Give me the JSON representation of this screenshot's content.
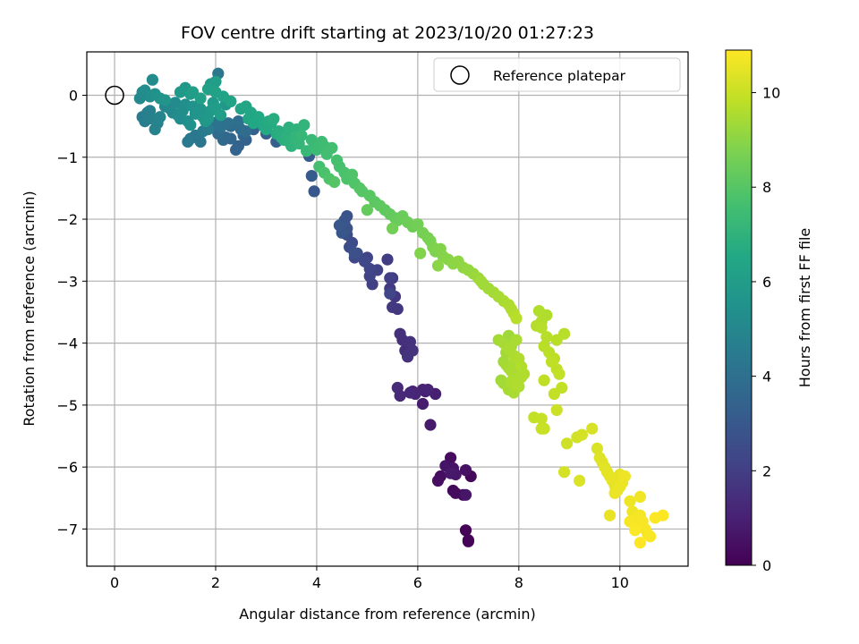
{
  "chart_data": {
    "type": "scatter",
    "title": "FOV centre drift starting at 2023/10/20 01:27:23",
    "xlabel": "Angular distance from reference (arcmin)",
    "ylabel": "Rotation from reference (arcmin)",
    "xlim": [
      -0.55,
      11.35
    ],
    "ylim": [
      -7.6,
      0.7
    ],
    "xticks": [
      0,
      2,
      4,
      6,
      8,
      10
    ],
    "yticks": [
      0,
      -1,
      -2,
      -3,
      -4,
      -5,
      -6,
      -7
    ],
    "grid": true,
    "legend": {
      "position": "top-right",
      "entries": [
        "Reference platepar"
      ]
    },
    "reference_point": {
      "x": 0,
      "y": 0,
      "label": "Reference platepar"
    },
    "colorbar": {
      "label": "Hours from first FF file",
      "colormap": "viridis",
      "range": [
        0,
        10.9
      ],
      "ticks": [
        0,
        2,
        4,
        6,
        8,
        10
      ]
    },
    "series": [
      {
        "x": [
          7.0,
          6.95,
          7.0,
          6.9,
          7.05,
          6.7,
          6.75,
          6.65,
          6.45,
          6.4,
          6.95,
          6.7,
          6.55,
          6.95,
          6.75,
          6.65
        ],
        "y": [
          -7.2,
          -7.02,
          -7.18,
          -6.45,
          -6.15,
          -6.38,
          -6.42,
          -5.85,
          -6.15,
          -6.22,
          -6.05,
          -6.02,
          -5.98,
          -6.45,
          -6.12,
          -6.1
        ],
        "hours": [
          0.0,
          0.05,
          0.1,
          0.15,
          0.2,
          0.25,
          0.3,
          0.35,
          0.4,
          0.45,
          0.5,
          0.55,
          0.6,
          0.65,
          0.7,
          0.75
        ]
      },
      {
        "x": [
          6.25,
          6.1,
          6.15,
          6.35,
          5.9,
          6.1,
          6.2,
          5.95,
          5.85,
          5.65,
          5.6,
          5.8,
          5.75,
          5.7,
          5.65,
          5.85,
          5.9,
          5.8,
          5.6,
          5.55,
          5.5,
          5.45,
          5.5,
          5.4,
          5.45,
          5.1,
          5.2,
          5.05,
          5.0,
          5.45
        ],
        "y": [
          -5.32,
          -4.98,
          -4.78,
          -4.82,
          -4.78,
          -4.75,
          -4.75,
          -4.82,
          -4.8,
          -4.85,
          -4.72,
          -4.22,
          -4.12,
          -3.95,
          -3.85,
          -3.98,
          -4.12,
          -4.2,
          -3.45,
          -3.25,
          -3.42,
          -3.12,
          -2.95,
          -2.65,
          -2.95,
          -3.05,
          -2.82,
          -2.92,
          -2.62,
          -3.2
        ],
        "hours": [
          0.8,
          0.85,
          0.9,
          0.95,
          1.0,
          1.05,
          1.1,
          1.15,
          1.2,
          1.25,
          1.3,
          1.35,
          1.4,
          1.45,
          1.5,
          1.55,
          1.6,
          1.65,
          1.7,
          1.75,
          1.8,
          1.85,
          1.9,
          1.95,
          2.0,
          2.05,
          2.1,
          2.15,
          2.2,
          2.25
        ]
      },
      {
        "x": [
          5.05,
          4.95,
          4.75,
          4.7,
          4.8,
          4.65,
          4.6,
          4.75,
          4.55,
          4.6,
          4.6,
          4.55,
          4.5,
          4.45,
          3.95
        ],
        "y": [
          -2.8,
          -2.68,
          -2.62,
          -2.38,
          -2.55,
          -2.45,
          -2.25,
          -2.55,
          -2.05,
          -2.15,
          -1.95,
          -2.02,
          -2.22,
          -2.1,
          -1.55
        ],
        "hours": [
          2.3,
          2.35,
          2.4,
          2.45,
          2.5,
          2.55,
          2.6,
          2.65,
          2.7,
          2.75,
          2.8,
          2.85,
          2.9,
          2.95,
          3.0
        ]
      },
      {
        "x": [
          3.9,
          3.85,
          3.5,
          3.35,
          3.2,
          3.0,
          2.75,
          2.6,
          2.45,
          2.4,
          2.55,
          2.3,
          2.2,
          2.15,
          2.05,
          2.3,
          2.6,
          2.5,
          2.45,
          2.25,
          2.1,
          1.95,
          2.05,
          1.65,
          1.7,
          1.6,
          1.5,
          1.45,
          1.75,
          1.85
        ],
        "y": [
          -1.3,
          -0.98,
          -0.8,
          -0.7,
          -0.75,
          -0.62,
          -0.55,
          -0.72,
          -0.82,
          -0.88,
          -0.65,
          -0.7,
          -0.68,
          -0.72,
          -0.62,
          -0.5,
          -0.58,
          -0.55,
          -0.42,
          -0.45,
          -0.52,
          -0.48,
          -0.42,
          -0.68,
          -0.75,
          -0.65,
          -0.7,
          -0.75,
          -0.58,
          -0.55
        ],
        "hours": [
          3.05,
          3.1,
          3.15,
          3.2,
          3.25,
          3.3,
          3.35,
          3.4,
          3.45,
          3.5,
          3.55,
          3.6,
          3.65,
          3.7,
          3.75,
          3.8,
          3.85,
          3.9,
          3.95,
          4.0,
          4.05,
          4.1,
          4.15,
          4.2,
          4.25,
          4.3,
          4.35,
          4.4,
          4.45,
          4.5
        ]
      },
      {
        "x": [
          0.55,
          0.6,
          0.65,
          0.7,
          0.75,
          0.8,
          0.85,
          0.9,
          1.0,
          1.05,
          1.1,
          1.15,
          1.2,
          1.25,
          1.3,
          1.35,
          1.4,
          1.45,
          1.5,
          1.55,
          1.6,
          1.65,
          1.7,
          1.75,
          1.8,
          1.85,
          1.9,
          1.95,
          2.0,
          2.1,
          0.5,
          0.55,
          0.6,
          0.7,
          0.8,
          0.9,
          1.0,
          1.4,
          1.3,
          1.5,
          2.05,
          2.2,
          1.9,
          2.0,
          0.75
        ],
        "y": [
          -0.35,
          -0.42,
          -0.28,
          -0.25,
          -0.38,
          -0.55,
          -0.45,
          -0.35,
          -0.18,
          -0.15,
          -0.22,
          -0.28,
          -0.12,
          -0.32,
          -0.38,
          -0.25,
          -0.15,
          -0.42,
          -0.48,
          -0.18,
          -0.3,
          -0.28,
          -0.22,
          -0.35,
          -0.42,
          -0.38,
          -0.25,
          -0.12,
          -0.2,
          -0.32,
          -0.05,
          0.05,
          0.08,
          -0.02,
          0.02,
          -0.05,
          -0.08,
          0.12,
          0.05,
          0.02,
          0.35,
          -0.15,
          0.18,
          0.22,
          0.25
        ],
        "hours": [
          4.55,
          4.6,
          4.65,
          4.7,
          4.75,
          4.8,
          4.85,
          4.9,
          4.95,
          5.0,
          5.05,
          5.1,
          5.15,
          5.2,
          5.25,
          5.3,
          5.35,
          5.4,
          5.45,
          5.5,
          5.55,
          5.6,
          5.65,
          5.7,
          5.75,
          5.8,
          5.85,
          5.9,
          5.95,
          6.0,
          5.05,
          5.15,
          5.25,
          5.35,
          5.45,
          5.55,
          5.65,
          5.75,
          5.85,
          5.95,
          4.3,
          5.7,
          5.9,
          6.05,
          5.2
        ]
      },
      {
        "x": [
          1.55,
          1.7,
          1.85,
          2.0,
          2.15,
          2.3,
          2.5,
          2.65,
          2.75,
          2.8,
          2.95,
          3.0,
          3.1,
          3.2,
          3.25,
          3.3,
          3.35,
          3.4,
          3.45,
          3.5,
          3.55,
          3.6,
          3.65,
          3.7,
          3.8,
          3.9,
          3.95,
          4.0,
          4.1,
          4.15,
          4.2,
          4.3,
          2.6,
          2.7,
          2.85,
          3.05,
          3.15,
          3.45,
          3.6,
          3.75
        ],
        "y": [
          0.05,
          -0.05,
          0.1,
          0.05,
          -0.02,
          -0.1,
          -0.22,
          -0.38,
          -0.45,
          -0.42,
          -0.5,
          -0.55,
          -0.45,
          -0.62,
          -0.58,
          -0.68,
          -0.72,
          -0.65,
          -0.75,
          -0.82,
          -0.72,
          -0.68,
          -0.78,
          -0.65,
          -0.9,
          -0.72,
          -0.82,
          -0.88,
          -0.75,
          -0.82,
          -0.95,
          -0.85,
          -0.18,
          -0.28,
          -0.35,
          -0.42,
          -0.38,
          -0.52,
          -0.55,
          -0.48
        ],
        "hours": [
          6.05,
          6.1,
          6.15,
          6.2,
          6.25,
          6.3,
          6.35,
          6.4,
          6.45,
          6.5,
          6.55,
          6.6,
          6.65,
          6.7,
          6.75,
          6.8,
          6.85,
          6.9,
          6.95,
          7.0,
          7.05,
          7.1,
          7.15,
          7.2,
          7.25,
          7.3,
          7.35,
          7.4,
          7.45,
          7.5,
          7.55,
          7.6,
          6.35,
          6.45,
          6.55,
          6.65,
          6.75,
          6.9,
          7.0,
          7.1
        ]
      },
      {
        "x": [
          4.4,
          4.45,
          4.55,
          4.6,
          4.7,
          4.75,
          4.85,
          4.9,
          5.05,
          5.15,
          5.25,
          5.35,
          5.45,
          5.55,
          5.6,
          5.7,
          5.8,
          5.9,
          6.0,
          6.1,
          6.2,
          6.25,
          6.3,
          6.35,
          6.45,
          6.5,
          6.6,
          6.7,
          6.8,
          6.9,
          7.0,
          7.1,
          7.2,
          7.3,
          7.4,
          7.5,
          7.6,
          7.7,
          7.8,
          7.85,
          7.9,
          7.95,
          4.05,
          4.15,
          4.25,
          4.35,
          5.0,
          5.5,
          6.05,
          6.4,
          7.25
        ],
        "y": [
          -1.05,
          -1.15,
          -1.25,
          -1.35,
          -1.28,
          -1.42,
          -1.5,
          -1.55,
          -1.62,
          -1.72,
          -1.78,
          -1.85,
          -1.92,
          -1.98,
          -2.02,
          -1.95,
          -2.05,
          -2.12,
          -2.08,
          -2.22,
          -2.3,
          -2.35,
          -2.45,
          -2.52,
          -2.48,
          -2.6,
          -2.65,
          -2.72,
          -2.68,
          -2.78,
          -2.82,
          -2.88,
          -2.95,
          -3.05,
          -3.12,
          -3.18,
          -3.25,
          -3.32,
          -3.38,
          -3.45,
          -3.52,
          -3.6,
          -1.15,
          -1.25,
          -1.35,
          -1.4,
          -1.85,
          -2.15,
          -2.55,
          -2.75,
          -3.0
        ],
        "hours": [
          7.65,
          7.7,
          7.75,
          7.8,
          7.85,
          7.9,
          7.95,
          8.0,
          8.05,
          8.1,
          8.15,
          8.2,
          8.25,
          8.3,
          8.35,
          8.4,
          8.45,
          8.5,
          8.55,
          8.6,
          8.65,
          8.7,
          8.75,
          8.8,
          8.85,
          8.9,
          8.95,
          9.0,
          9.05,
          9.1,
          9.15,
          9.2,
          9.25,
          9.3,
          9.35,
          9.4,
          9.45,
          9.5,
          9.55,
          9.6,
          9.65,
          9.7,
          7.65,
          7.75,
          7.85,
          7.95,
          8.3,
          8.55,
          8.85,
          9.0,
          9.35
        ]
      },
      {
        "x": [
          7.6,
          7.7,
          7.8,
          7.9,
          8.0,
          7.75,
          7.85,
          7.95,
          8.05,
          7.65,
          7.7,
          7.8,
          7.9,
          8.0,
          8.1,
          7.75,
          7.85,
          7.95,
          7.7,
          7.8,
          7.9,
          8.0,
          7.85,
          7.95,
          8.05,
          7.8,
          8.45,
          8.55,
          8.5,
          8.6,
          8.7,
          8.65,
          8.75,
          8.8,
          8.85,
          8.7,
          8.75,
          8.9,
          8.55,
          8.45,
          8.4,
          8.35,
          8.5
        ],
        "y": [
          -3.95,
          -4.0,
          -4.1,
          -4.2,
          -4.25,
          -4.35,
          -4.45,
          -4.5,
          -4.55,
          -4.6,
          -4.65,
          -4.75,
          -4.8,
          -4.7,
          -4.5,
          -4.15,
          -4.05,
          -3.95,
          -4.3,
          -4.4,
          -4.35,
          -4.45,
          -4.62,
          -4.68,
          -4.38,
          -3.88,
          -3.75,
          -3.9,
          -4.05,
          -4.15,
          -4.25,
          -4.3,
          -4.42,
          -4.5,
          -4.72,
          -4.82,
          -3.95,
          -3.85,
          -3.55,
          -3.65,
          -3.48,
          -3.72,
          -4.6
        ],
        "hours": [
          9.4,
          9.45,
          9.5,
          9.55,
          9.6,
          9.42,
          9.48,
          9.52,
          9.58,
          9.35,
          9.4,
          9.45,
          9.5,
          9.55,
          9.6,
          9.38,
          9.42,
          9.48,
          9.38,
          9.42,
          9.48,
          9.52,
          9.55,
          9.58,
          9.62,
          9.3,
          9.7,
          9.72,
          9.75,
          9.78,
          9.8,
          9.82,
          9.85,
          9.88,
          9.9,
          9.92,
          9.75,
          9.7,
          9.6,
          9.65,
          9.62,
          9.68,
          9.85
        ]
      },
      {
        "x": [
          8.3,
          8.45,
          8.5,
          8.75,
          8.95,
          9.15,
          9.25,
          9.45,
          9.55,
          9.6,
          9.65,
          9.7,
          9.75,
          9.8,
          9.85,
          9.9,
          9.95,
          10.0,
          10.05,
          10.1,
          10.2,
          10.25,
          10.3,
          10.35,
          10.4,
          10.45,
          10.5,
          10.55,
          10.6,
          10.7,
          10.85,
          10.3,
          10.4,
          10.2,
          9.9,
          9.8,
          8.9,
          8.45,
          9.2,
          10.0,
          10.4
        ],
        "y": [
          -5.2,
          -5.22,
          -5.38,
          -5.08,
          -5.62,
          -5.52,
          -5.48,
          -5.38,
          -5.7,
          -5.85,
          -5.92,
          -6.0,
          -6.08,
          -6.15,
          -6.22,
          -6.3,
          -6.38,
          -6.32,
          -6.25,
          -6.15,
          -6.55,
          -6.72,
          -6.85,
          -6.92,
          -6.78,
          -6.88,
          -7.0,
          -7.08,
          -7.12,
          -6.82,
          -6.78,
          -7.02,
          -7.22,
          -6.88,
          -6.42,
          -6.78,
          -6.08,
          -5.38,
          -6.22,
          -6.12,
          -6.48
        ],
        "hours": [
          9.9,
          9.95,
          10.0,
          10.05,
          10.1,
          10.15,
          10.2,
          10.25,
          10.3,
          10.35,
          10.4,
          10.42,
          10.45,
          10.48,
          10.5,
          10.52,
          10.55,
          10.58,
          10.6,
          10.62,
          10.65,
          10.68,
          10.7,
          10.72,
          10.75,
          10.78,
          10.8,
          10.82,
          10.84,
          10.86,
          10.88,
          10.85,
          10.9,
          10.8,
          10.6,
          10.55,
          10.2,
          10.0,
          10.3,
          10.5,
          10.7
        ]
      }
    ]
  }
}
